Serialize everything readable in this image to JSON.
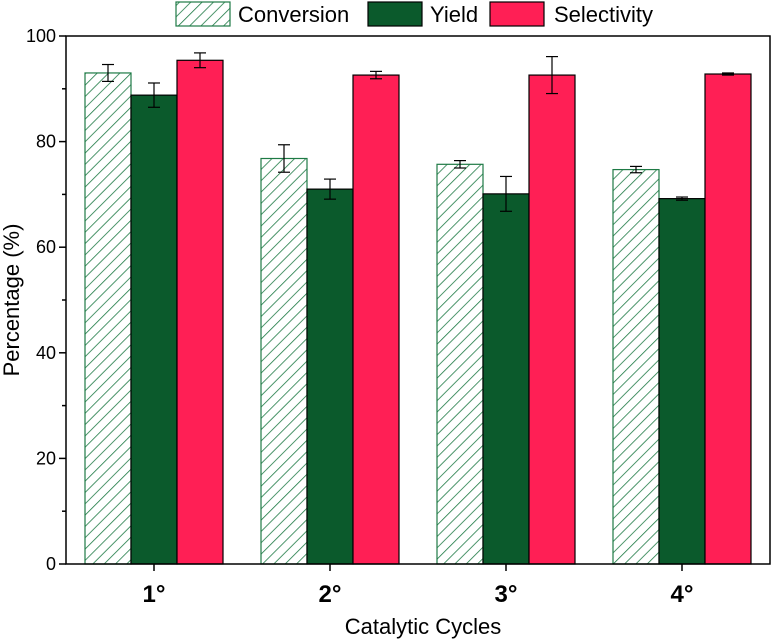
{
  "chart_data": {
    "type": "bar",
    "title": "",
    "xlabel": "Catalytic Cycles",
    "ylabel": "Percentage (%)",
    "ylim": [
      0,
      100
    ],
    "yticks": [
      0,
      20,
      40,
      60,
      80,
      100
    ],
    "categories": [
      "1°",
      "2°",
      "3°",
      "4°"
    ],
    "legend_position": "top",
    "series": [
      {
        "name": "Conversion",
        "style": "hatched",
        "color": "#1e7a45",
        "fill": "#ffffff",
        "values": [
          93.0,
          76.8,
          75.7,
          74.7
        ],
        "errors": [
          1.6,
          2.6,
          0.7,
          0.6
        ]
      },
      {
        "name": "Yield",
        "style": "solid",
        "color": "#0b5a2c",
        "fill": "#0b5a2c",
        "values": [
          88.8,
          71.0,
          70.1,
          69.2
        ],
        "errors": [
          2.3,
          1.9,
          3.3,
          0.3
        ]
      },
      {
        "name": "Selectivity",
        "style": "solid",
        "color": "#ff1f55",
        "fill": "#ff1f55",
        "values": [
          95.4,
          92.6,
          92.6,
          92.8
        ],
        "errors": [
          1.4,
          0.7,
          3.5,
          0.2
        ]
      }
    ]
  }
}
